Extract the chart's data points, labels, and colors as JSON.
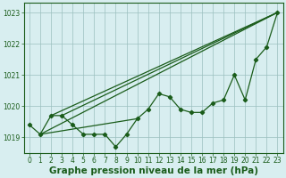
{
  "hours": [
    0,
    1,
    2,
    3,
    4,
    5,
    6,
    7,
    8,
    9,
    10,
    11,
    12,
    13,
    14,
    15,
    16,
    17,
    18,
    19,
    20,
    21,
    22,
    23
  ],
  "pressure": [
    1019.4,
    1019.1,
    1019.7,
    1019.7,
    1019.4,
    1019.1,
    1019.1,
    1019.1,
    1018.7,
    1019.1,
    1019.6,
    1019.9,
    1020.4,
    1020.3,
    1019.9,
    1019.8,
    1019.8,
    1020.1,
    1020.2,
    1021.0,
    1020.2,
    1021.5,
    1021.9,
    1023.0
  ],
  "line_color": "#1a5c1a",
  "marker": "D",
  "marker_size": 2.2,
  "bg_color": "#d8eef0",
  "grid_color": "#9bbfbf",
  "xlabel": "Graphe pression niveau de la mer (hPa)",
  "ylim": [
    1018.5,
    1023.3
  ],
  "xlim": [
    -0.5,
    23.5
  ],
  "yticks": [
    1019,
    1020,
    1021,
    1022,
    1023
  ],
  "xticks": [
    0,
    1,
    2,
    3,
    4,
    5,
    6,
    7,
    8,
    9,
    10,
    11,
    12,
    13,
    14,
    15,
    16,
    17,
    18,
    19,
    20,
    21,
    22,
    23
  ],
  "tick_fontsize": 5.5,
  "xlabel_fontsize": 7.5,
  "line_width": 0.9,
  "fan_lines": [
    {
      "x0_idx": 1,
      "x1_idx": 23
    },
    {
      "x0_idx": 2,
      "x1_idx": 23
    },
    {
      "x0_idx": 3,
      "x1_idx": 23
    }
  ],
  "horiz_line": {
    "x0_idx": 1,
    "x1_idx": 10
  }
}
